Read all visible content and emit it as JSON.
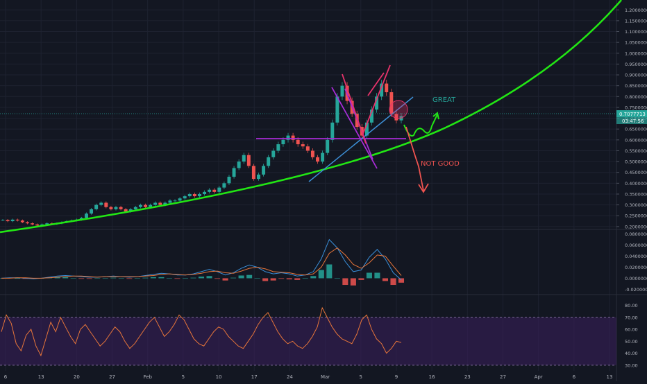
{
  "colors": {
    "background": "#131722",
    "grid": "#1e2230",
    "axis_text": "#b2b5be",
    "candle_up": "#26a69a",
    "candle_down": "#ef5350",
    "growth_curve": "#22e614",
    "trend_blue": "#3d8fd6",
    "trend_purple": "#a82bd6",
    "trend_pink": "#e8336b",
    "macd_line": "#3a8fd9",
    "signal_line": "#e8763a",
    "rsi_line": "#e8763a",
    "rsi_band": "#3b1f5c",
    "annotation_great": "#26a69a",
    "annotation_bad": "#ef5350"
  },
  "chart_data": [
    {
      "type": "candlestick",
      "panel": "price",
      "y_ticks": [
        "1.20000000",
        "1.15000000",
        "1.10000000",
        "1.05000000",
        "1.00000000",
        "0.95000000",
        "0.90000000",
        "0.85000000",
        "0.80000000",
        "0.75000000",
        "0.70000000",
        "0.65000000",
        "0.60000000",
        "0.55000000",
        "0.50000000",
        "0.45000000",
        "0.40000000",
        "0.35000000",
        "0.30000000",
        "0.25000000",
        "0.20000000"
      ],
      "ylim": [
        0.19,
        1.22
      ],
      "last_price_label": "0.7077713",
      "countdown_label": "03:47:56",
      "closes": [
        0.23,
        0.225,
        0.232,
        0.228,
        0.22,
        0.215,
        0.21,
        0.205,
        0.21,
        0.215,
        0.212,
        0.215,
        0.22,
        0.225,
        0.228,
        0.232,
        0.24,
        0.26,
        0.28,
        0.3,
        0.31,
        0.29,
        0.28,
        0.29,
        0.28,
        0.27,
        0.28,
        0.29,
        0.3,
        0.29,
        0.3,
        0.31,
        0.3,
        0.31,
        0.32,
        0.32,
        0.33,
        0.34,
        0.35,
        0.34,
        0.35,
        0.36,
        0.37,
        0.36,
        0.38,
        0.4,
        0.43,
        0.47,
        0.5,
        0.53,
        0.48,
        0.42,
        0.44,
        0.48,
        0.52,
        0.55,
        0.58,
        0.6,
        0.62,
        0.6,
        0.58,
        0.57,
        0.55,
        0.52,
        0.5,
        0.54,
        0.6,
        0.68,
        0.8,
        0.85,
        0.78,
        0.72,
        0.66,
        0.62,
        0.68,
        0.74,
        0.8,
        0.86,
        0.82,
        0.72,
        0.69,
        0.71
      ]
    },
    {
      "type": "line",
      "panel": "macd",
      "y_ticks": [
        "0.08000000",
        "0.06000000",
        "0.04000000",
        "0.02000000",
        "0.00000000",
        "-0.02000000"
      ],
      "ylim": [
        -0.027,
        0.082
      ],
      "macd": [
        0,
        0.001,
        0.001,
        0,
        -0.001,
        0,
        0.002,
        0.004,
        0.005,
        0.004,
        0.003,
        0.002,
        0.002,
        0.003,
        0.004,
        0.003,
        0.002,
        0.003,
        0.005,
        0.007,
        0.009,
        0.008,
        0.006,
        0.006,
        0.008,
        0.012,
        0.016,
        0.012,
        0.006,
        0.01,
        0.018,
        0.024,
        0.02,
        0.012,
        0.008,
        0.01,
        0.008,
        0.004,
        0.006,
        0.012,
        0.035,
        0.07,
        0.055,
        0.03,
        0.012,
        0.015,
        0.038,
        0.052,
        0.035,
        0.01,
        -0.003
      ],
      "signal": [
        0,
        0,
        0.001,
        0.001,
        0,
        0,
        0.001,
        0.002,
        0.003,
        0.004,
        0.004,
        0.003,
        0.002,
        0.003,
        0.003,
        0.003,
        0.003,
        0.003,
        0.004,
        0.005,
        0.007,
        0.008,
        0.007,
        0.006,
        0.007,
        0.009,
        0.012,
        0.013,
        0.01,
        0.009,
        0.013,
        0.018,
        0.02,
        0.017,
        0.012,
        0.011,
        0.01,
        0.007,
        0.006,
        0.008,
        0.02,
        0.045,
        0.055,
        0.042,
        0.025,
        0.018,
        0.028,
        0.042,
        0.04,
        0.022,
        0.005
      ]
    },
    {
      "type": "line",
      "panel": "rsi",
      "y_ticks": [
        "80.00",
        "70.00",
        "60.00",
        "50.00",
        "40.00",
        "30.00"
      ],
      "ylim": [
        27,
        85
      ],
      "band": [
        30,
        70
      ],
      "values": [
        58,
        72,
        65,
        48,
        42,
        55,
        60,
        46,
        38,
        52,
        66,
        58,
        70,
        62,
        54,
        48,
        60,
        64,
        58,
        52,
        46,
        50,
        56,
        62,
        58,
        50,
        44,
        48,
        54,
        60,
        66,
        70,
        62,
        54,
        58,
        64,
        72,
        68,
        60,
        52,
        48,
        46,
        52,
        58,
        62,
        60,
        54,
        50,
        46,
        44,
        50,
        56,
        64,
        70,
        74,
        66,
        58,
        52,
        48,
        50,
        46,
        44,
        48,
        54,
        62,
        78,
        70,
        62,
        56,
        52,
        50,
        48,
        56,
        68,
        72,
        60,
        52,
        48,
        40,
        44,
        50,
        49
      ]
    }
  ],
  "x_axis": {
    "ticks": [
      "6",
      "13",
      "20",
      "27",
      "Feb",
      "5",
      "10",
      "17",
      "24",
      "Mar",
      "5",
      "9",
      "16",
      "23",
      "27",
      "Apr",
      "6",
      "13"
    ]
  },
  "annotations": {
    "great": "GREAT",
    "not_good": "NOT GOOD"
  }
}
